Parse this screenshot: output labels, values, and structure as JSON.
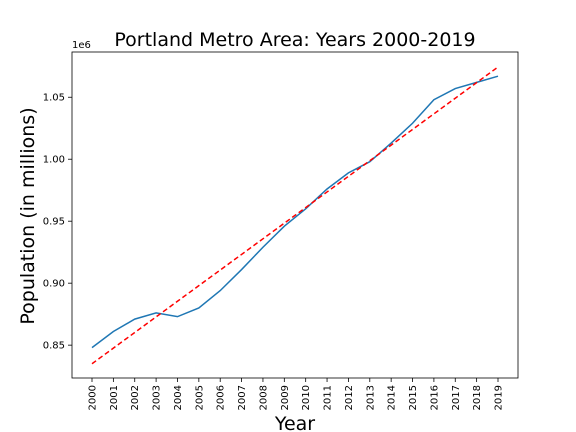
{
  "chart_data": {
    "type": "line",
    "title": "Portland Metro Area: Years 2000-2019",
    "xlabel": "Year",
    "ylabel": "Population (in millions)",
    "y_offset_label": "1e6",
    "x": [
      "2000",
      "2001",
      "2002",
      "2003",
      "2004",
      "2005",
      "2006",
      "2007",
      "2008",
      "2009",
      "2010",
      "2011",
      "2012",
      "2013",
      "2014",
      "2015",
      "2016",
      "2017",
      "2018",
      "2019"
    ],
    "series": [
      {
        "style": "solid",
        "color": "#1f77b4",
        "values": [
          0.848,
          0.861,
          0.871,
          0.876,
          0.873,
          0.88,
          0.894,
          0.911,
          0.929,
          0.946,
          0.96,
          0.976,
          0.989,
          0.998,
          1.013,
          1.029,
          1.048,
          1.057,
          1.062,
          1.067
        ]
      },
      {
        "style": "dashed",
        "color": "#ff0000",
        "values": [
          0.835,
          0.8476,
          0.8602,
          0.8728,
          0.8854,
          0.898,
          0.9106,
          0.9232,
          0.9358,
          0.9484,
          0.961,
          0.9736,
          0.9862,
          0.9988,
          1.0114,
          1.024,
          1.0366,
          1.0492,
          1.0618,
          1.0744
        ]
      }
    ],
    "ylim": [
      0.8235,
      1.0865
    ],
    "yticks": [
      0.85,
      0.9,
      0.95,
      1.0,
      1.05
    ],
    "ytick_labels": [
      "0.85",
      "0.90",
      "0.95",
      "1.00",
      "1.05"
    ],
    "grid": false,
    "legend": "none"
  }
}
